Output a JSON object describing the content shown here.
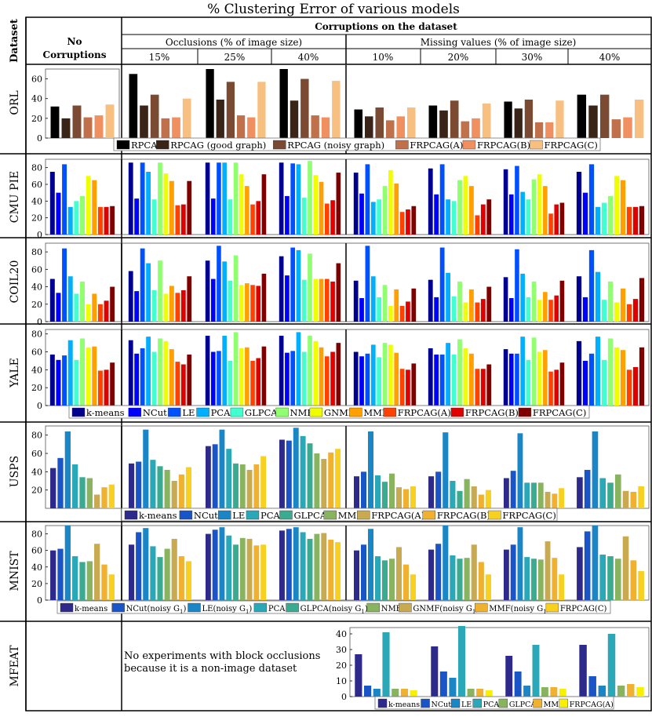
{
  "title": "% Clustering Error of various models",
  "header": {
    "dataset_label": "Dataset",
    "no_corruptions_line1": "No",
    "no_corruptions_line2": "Corruptions",
    "corruptions_label": "Corruptions on the dataset",
    "occlusions_label": "Occlusions (% of image size)",
    "missing_label": "Missing values (% of image size)",
    "columns": [
      "15%",
      "25%",
      "40%",
      "10%",
      "20%",
      "30%",
      "40%"
    ]
  },
  "mfeat_note_line1": "No experiments with block occlusions",
  "mfeat_note_line2": "because it is a non-image dataset",
  "colors": {
    "orl": [
      "#000000",
      "#3a2418",
      "#7a4a32",
      "#c0704a",
      "#f09060",
      "#f8c080"
    ],
    "jet11": [
      "#00008f",
      "#0000ff",
      "#0050ff",
      "#00b0ff",
      "#40ffd0",
      "#90ff70",
      "#f0ff00",
      "#ffa000",
      "#ff4000",
      "#e00000",
      "#800000"
    ],
    "usps": [
      "#2e2a8c",
      "#1a55c8",
      "#1a86c6",
      "#2aa8b8",
      "#3aaa90",
      "#88b460",
      "#c8aa50",
      "#f0b030",
      "#f8d020",
      "#f8f000"
    ],
    "mnist": [
      "#2e2a8c",
      "#1a55c8",
      "#1a86c6",
      "#2aa8b8",
      "#3aaa90",
      "#88b460",
      "#c8aa50",
      "#f0b030",
      "#f8d020",
      "#f8f000"
    ],
    "mfeat": [
      "#2e2a8c",
      "#1a55c8",
      "#1a86c6",
      "#2aa8b8",
      "#88b460",
      "#f0b030",
      "#f8f000"
    ]
  },
  "chart_data": [
    {
      "type": "bar",
      "dataset": "ORL",
      "ylim": [
        0,
        70
      ],
      "yticks": [
        0,
        20,
        40,
        60
      ],
      "color_key": "orl",
      "series": [
        "RPCA",
        "RPCAG (good graph)",
        "RPCAG (noisy graph)",
        "FRPCAG(A)",
        "FRPCAG(B)",
        "FRPCAG(C)"
      ],
      "legend": [
        "RPCA",
        "RPCAG (good graph)",
        "RPCAG (noisy graph)",
        "FRPCAG(A)",
        "FRPCAG(B)",
        "FRPCAG(C)"
      ],
      "groups": [
        [
          32,
          20,
          33,
          21,
          23,
          34
        ],
        [
          65,
          33,
          44,
          20,
          21,
          40
        ],
        [
          70,
          39,
          57,
          23,
          21,
          57
        ],
        [
          70,
          38,
          60,
          23,
          21,
          58
        ],
        [
          29,
          22,
          31,
          18,
          22,
          31
        ],
        [
          33,
          28,
          38,
          17,
          20,
          35
        ],
        [
          37,
          30,
          39,
          16,
          16,
          38
        ],
        [
          44,
          33,
          44,
          19,
          21,
          39
        ]
      ]
    },
    {
      "type": "bar",
      "dataset": "CMU PIE",
      "ylim": [
        0,
        90
      ],
      "yticks": [
        0,
        20,
        40,
        60,
        80
      ],
      "color_key": "jet11",
      "series": [
        "k-means",
        "NCut",
        "LE",
        "PCA",
        "GLPCA",
        "NMF",
        "GNMF",
        "MMF",
        "FRPCAG(A)",
        "FRPCAG(B)",
        "FRPCAG(C)"
      ],
      "groups": [
        [
          75,
          50,
          84,
          33,
          40,
          46,
          70,
          65,
          33,
          33,
          34
        ],
        [
          86,
          43,
          86,
          75,
          42,
          86,
          73,
          64,
          35,
          36,
          64
        ],
        [
          86,
          43,
          86,
          86,
          42,
          86,
          72,
          58,
          36,
          40,
          72
        ],
        [
          86,
          46,
          85,
          84,
          44,
          88,
          71,
          63,
          37,
          41,
          74
        ],
        [
          74,
          49,
          84,
          39,
          42,
          58,
          77,
          61,
          27,
          30,
          34
        ],
        [
          79,
          48,
          84,
          42,
          40,
          65,
          70,
          58,
          23,
          36,
          42
        ],
        [
          78,
          48,
          82,
          51,
          42,
          66,
          72,
          58,
          25,
          36,
          38
        ],
        [
          75,
          50,
          84,
          33,
          38,
          46,
          70,
          65,
          33,
          33,
          34
        ]
      ]
    },
    {
      "type": "bar",
      "dataset": "COIL20",
      "ylim": [
        0,
        90
      ],
      "yticks": [
        0,
        20,
        40,
        60,
        80
      ],
      "color_key": "jet11",
      "series": [
        "k-means",
        "NCut",
        "LE",
        "PCA",
        "GLPCA",
        "NMF",
        "GNMF",
        "MMF",
        "FRPCAG(A)",
        "FRPCAG(B)",
        "FRPCAG(C)"
      ],
      "groups": [
        [
          49,
          33,
          84,
          52,
          32,
          46,
          20,
          32,
          20,
          24,
          40
        ],
        [
          58,
          35,
          84,
          67,
          36,
          70,
          32,
          41,
          33,
          36,
          52
        ],
        [
          70,
          49,
          87,
          69,
          47,
          76,
          42,
          44,
          42,
          41,
          55
        ],
        [
          75,
          53,
          85,
          82,
          48,
          78,
          49,
          49,
          49,
          46,
          67
        ],
        [
          47,
          27,
          87,
          52,
          28,
          42,
          18,
          37,
          18,
          23,
          38
        ],
        [
          48,
          28,
          85,
          56,
          29,
          46,
          22,
          37,
          22,
          26,
          40
        ],
        [
          51,
          27,
          83,
          55,
          28,
          46,
          25,
          34,
          25,
          30,
          47
        ],
        [
          52,
          28,
          82,
          57,
          25,
          46,
          22,
          38,
          20,
          26,
          50
        ]
      ]
    },
    {
      "type": "bar",
      "dataset": "YALE",
      "ylim": [
        0,
        85
      ],
      "yticks": [
        0,
        20,
        40,
        60,
        80
      ],
      "color_key": "jet11",
      "series": [
        "k-means",
        "NCut",
        "LE",
        "PCA",
        "GLPCA",
        "NMF",
        "GNMF",
        "MMF",
        "FRPCAG(A)",
        "FRPCAG(B)",
        "FRPCAG(C)"
      ],
      "legend": [
        "k-means",
        "NCut",
        "LE",
        "PCA",
        "GLPCA",
        "NMF",
        "GNMF",
        "MMF",
        "FRPCAG(A)",
        "FRPCAG(B)",
        "FRPCAG(C)"
      ],
      "groups": [
        [
          57,
          51,
          56,
          73,
          51,
          75,
          65,
          66,
          39,
          40,
          48
        ],
        [
          73,
          58,
          64,
          77,
          60,
          75,
          72,
          63,
          49,
          46,
          57
        ],
        [
          78,
          60,
          61,
          78,
          50,
          82,
          64,
          65,
          50,
          53,
          66
        ],
        [
          78,
          59,
          61,
          82,
          60,
          78,
          72,
          65,
          55,
          60,
          70
        ],
        [
          60,
          55,
          58,
          68,
          54,
          70,
          68,
          59,
          41,
          40,
          47
        ],
        [
          64,
          57,
          57,
          70,
          57,
          74,
          64,
          58,
          41,
          41,
          46
        ],
        [
          63,
          58,
          58,
          77,
          51,
          76,
          60,
          62,
          38,
          40,
          48
        ],
        [
          72,
          50,
          58,
          77,
          51,
          75,
          65,
          62,
          40,
          43,
          65
        ]
      ]
    },
    {
      "type": "bar",
      "dataset": "USPS",
      "ylim": [
        0,
        90
      ],
      "yticks": [
        20,
        40,
        60,
        80
      ],
      "color_key": "usps",
      "series": [
        "k-means",
        "NCut",
        "LE",
        "PCA",
        "GLPCA",
        "MMF",
        "FRPCAG(A)",
        "FRPCAG(B)",
        "FRPCAG(C)"
      ],
      "legend": [
        "k-means",
        "NCut",
        "LE",
        "PCA",
        "GLPCA",
        "MMF",
        "FRPCAG(A)",
        "FRPCAG(B)",
        "FRPCAG(C)"
      ],
      "groups": [
        [
          44,
          55,
          84,
          48,
          34,
          33,
          15,
          23,
          26
        ],
        [
          49,
          51,
          86,
          53,
          46,
          42,
          30,
          37,
          45
        ],
        [
          68,
          70,
          86,
          65,
          49,
          48,
          42,
          48,
          57
        ],
        [
          75,
          74,
          88,
          79,
          71,
          60,
          54,
          61,
          65
        ],
        [
          35,
          40,
          84,
          36,
          29,
          38,
          23,
          21,
          24
        ],
        [
          35,
          40,
          83,
          30,
          19,
          32,
          24,
          15,
          20
        ],
        [
          33,
          41,
          82,
          28,
          28,
          28,
          18,
          16,
          22
        ],
        [
          34,
          42,
          84,
          33,
          28,
          37,
          19,
          18,
          24
        ]
      ]
    },
    {
      "type": "bar",
      "dataset": "MNIST",
      "ylim": [
        0,
        90
      ],
      "yticks": [
        0,
        20,
        40,
        60,
        80
      ],
      "color_key": "mnist",
      "series": [
        "k-means",
        "NCut(noisy G1)",
        "LE(noisy G1)",
        "PCA",
        "GLPCA(noisy G1)",
        "NMF",
        "GNMF(noisy G1)",
        "MMF(noisy G1)",
        "FRPCAG(C)"
      ],
      "legend": [
        "k-means",
        "NCut(noisy G",
        "LE(noisy G",
        "PCA",
        "GLPCA(noisy G",
        "NMF",
        "GNMF(noisy G",
        "MMF(noisy G",
        "FRPCAG(C)"
      ],
      "legend_sub": [
        "",
        "1",
        "1",
        "",
        "1",
        "",
        "1",
        "1",
        ""
      ],
      "groups": [
        [
          60,
          62,
          90,
          53,
          46,
          47,
          68,
          43,
          31
        ],
        [
          67,
          82,
          87,
          65,
          52,
          62,
          74,
          53,
          47
        ],
        [
          80,
          85,
          88,
          78,
          67,
          75,
          74,
          66,
          67
        ],
        [
          84,
          86,
          88,
          82,
          74,
          80,
          81,
          73,
          70
        ],
        [
          60,
          67,
          86,
          53,
          48,
          50,
          64,
          43,
          31
        ],
        [
          61,
          68,
          90,
          54,
          50,
          51,
          67,
          46,
          31
        ],
        [
          61,
          67,
          88,
          52,
          50,
          49,
          71,
          51,
          31
        ],
        [
          64,
          83,
          90,
          55,
          53,
          50,
          77,
          48,
          35
        ]
      ]
    },
    {
      "type": "bar",
      "dataset": "MFEAT",
      "ylim": [
        0,
        44
      ],
      "yticks": [
        0,
        10,
        20,
        30,
        40
      ],
      "color_key": "mfeat",
      "series": [
        "k-means",
        "NCut",
        "LE",
        "PCA",
        "GLPCA",
        "MMF",
        "FRPCAG(A)"
      ],
      "legend": [
        "k-means",
        "NCut",
        "LE",
        "PCA",
        "GLPCA",
        "MMF",
        "FRPCAG(A)"
      ],
      "groups": [
        [
          27,
          7,
          5,
          41,
          5,
          5,
          4
        ],
        [
          32,
          16,
          12,
          45,
          5,
          5,
          4
        ],
        [
          26,
          16,
          7,
          33,
          6,
          6,
          5
        ],
        [
          33,
          13,
          7,
          40,
          7,
          8,
          6
        ]
      ]
    }
  ]
}
